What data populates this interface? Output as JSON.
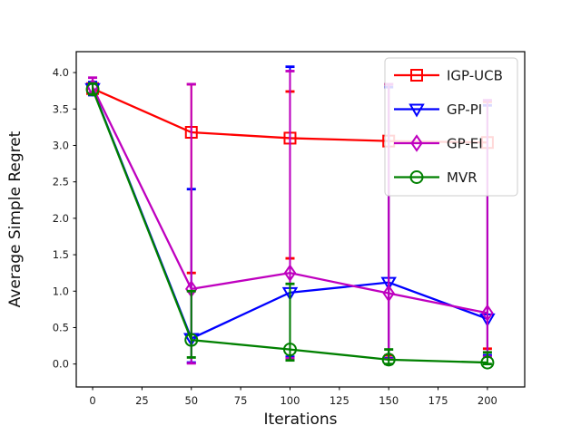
{
  "figure": {
    "xlabel": "Iterations",
    "ylabel": "Average Simple Regret",
    "background_color": "#ffffff",
    "spine_color": "#000000",
    "legend_border_color": "#cccccc"
  },
  "chart_data": {
    "type": "line",
    "title": "",
    "xlabel": "Iterations",
    "ylabel": "Average Simple Regret",
    "x": [
      0,
      50,
      100,
      150,
      200
    ],
    "xticks": [
      0,
      25,
      50,
      75,
      100,
      125,
      150,
      175,
      200
    ],
    "yticks": [
      0.0,
      0.5,
      1.0,
      1.5,
      2.0,
      2.5,
      3.0,
      3.5,
      4.0
    ],
    "xlim": [
      -8.3,
      218.9
    ],
    "ylim": [
      -0.315,
      4.287
    ],
    "grid": false,
    "legend_position": "upper right",
    "error_bars": true,
    "series": [
      {
        "name": "IGP-UCB",
        "color": "#ff0000",
        "marker": "square",
        "y": [
          3.78,
          3.18,
          3.1,
          3.06,
          3.04
        ],
        "err_lo": [
          3.7,
          1.25,
          1.45,
          0.12,
          0.21
        ],
        "err_hi": [
          3.86,
          3.84,
          3.74,
          3.84,
          3.6
        ]
      },
      {
        "name": "GP-PI",
        "color": "#0000ff",
        "marker": "triangle-down",
        "y": [
          3.78,
          0.35,
          0.98,
          1.12,
          0.62
        ],
        "err_lo": [
          3.69,
          0.02,
          0.1,
          0.08,
          0.12
        ],
        "err_hi": [
          3.87,
          2.4,
          4.08,
          3.8,
          3.55
        ]
      },
      {
        "name": "GP-EI",
        "color": "#bf00bf",
        "marker": "diamond",
        "y": [
          3.8,
          1.03,
          1.25,
          0.97,
          0.7
        ],
        "err_lo": [
          3.72,
          0.01,
          0.08,
          0.07,
          0.1
        ],
        "err_hi": [
          3.93,
          3.84,
          4.02,
          3.84,
          3.62
        ]
      },
      {
        "name": "MVR",
        "color": "#008000",
        "marker": "circle",
        "y": [
          3.77,
          0.33,
          0.2,
          0.06,
          0.02
        ],
        "err_lo": [
          3.7,
          0.09,
          0.05,
          0.0,
          0.0
        ],
        "err_hi": [
          3.85,
          1.0,
          1.1,
          0.2,
          0.16
        ]
      }
    ]
  }
}
